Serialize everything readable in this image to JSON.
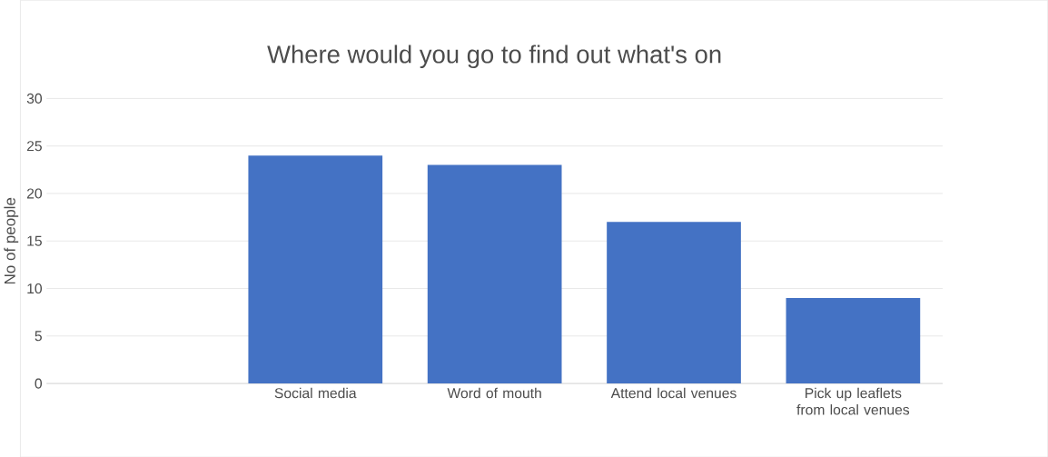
{
  "chart_data": {
    "type": "bar",
    "title": "Where would you go to find out what's on",
    "ylabel": "No of people",
    "categories": [
      null,
      "Social media",
      "Word of mouth",
      "Attend local venues",
      "Pick up leaflets from local venues"
    ],
    "values": [
      null,
      24,
      23,
      17,
      9
    ],
    "color": "#4472c4",
    "ylim": [
      0,
      30
    ],
    "yticks": [
      0,
      5,
      10,
      15,
      20,
      25,
      30
    ],
    "grid": "y"
  }
}
